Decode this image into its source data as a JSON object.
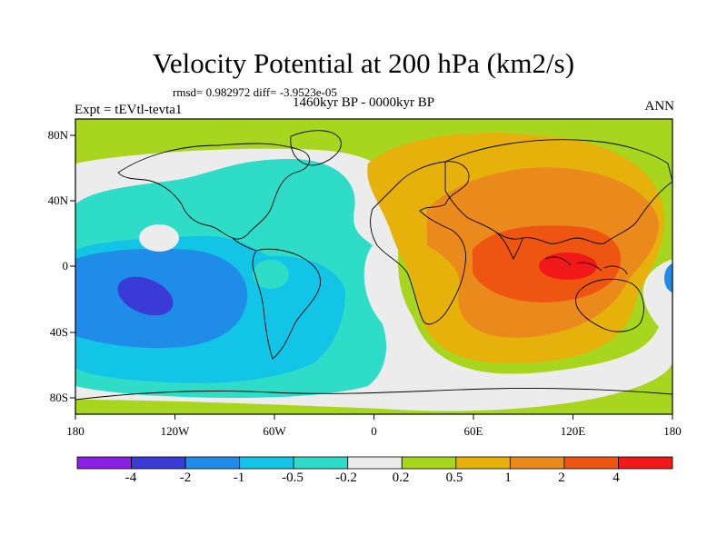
{
  "title": "Velocity Potential at 200 hPa (km2/s)",
  "stats": "rmsd= 0.982972  diff= -3.9523e-05",
  "period": "1460kyr BP - 0000kyr BP",
  "experiment": "Expt = tEVtl-tevta1",
  "season": "ANN",
  "map": {
    "projection": "cylindrical equidistant",
    "lon_range": [
      -180,
      180
    ],
    "lat_range": [
      -90,
      90
    ],
    "lon_ticks": [
      "180",
      "120W",
      "60W",
      "0",
      "60E",
      "120E",
      "180"
    ],
    "lat_ticks": [
      "80N",
      "40N",
      "0",
      "40S",
      "80S"
    ],
    "fields": {
      "background_level": "0.2 to 0.5",
      "patterns": [
        {
          "name": "high-latitude band",
          "level": "0.2 to 0.5",
          "color": "#a8d51e"
        },
        {
          "name": "central pacific / americas / atlantic negative",
          "level": "-0.5 to -0.2",
          "color": "#2edcc8"
        },
        {
          "name": "eastern pacific / south america negative",
          "level": "-1 to -0.5",
          "color": "#12c4e6"
        },
        {
          "name": "eastern tropical pacific minimum",
          "level": "-2 to -1",
          "color": "#1f8ce8"
        },
        {
          "name": "pacific core minimum",
          "level": "-4 to -2",
          "color": "#3a3ad6"
        },
        {
          "name": "africa / indian ocean positive",
          "level": "0.5 to 1",
          "color": "#e6b10a"
        },
        {
          "name": "asia / maritime continent positive",
          "level": "1 to 2",
          "color": "#ea8a1c"
        },
        {
          "name": "maritime continent maximum",
          "level": "2 to 4",
          "color": "#ee5510"
        },
        {
          "name": "indonesia peak",
          "level": "> 4",
          "color": "#f01818"
        },
        {
          "name": "neutral zone",
          "level": "-0.2 to 0.2",
          "color": "#ececec"
        }
      ]
    }
  },
  "colorbar": {
    "labels": [
      "-4",
      "-2",
      "-1",
      "-0.5",
      "-0.2",
      "0.2",
      "0.5",
      "1",
      "2",
      "4"
    ],
    "colors": [
      "#8a1fe6",
      "#3a3ad6",
      "#1f8ce8",
      "#12c4e6",
      "#2edcc8",
      "#ececec",
      "#a8d51e",
      "#e6b10a",
      "#ea8a1c",
      "#ee5510",
      "#f01818"
    ]
  }
}
